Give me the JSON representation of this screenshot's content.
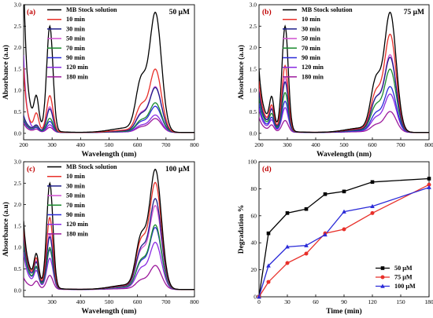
{
  "chart_data": [
    {
      "panel": "(a)",
      "type": "line",
      "concentration": "50 μM",
      "xlabel": "Wavelength (nm)",
      "ylabel": "Absorbance (a.u)",
      "xlim": [
        200,
        800
      ],
      "ylim": [
        -0.15,
        3.0
      ],
      "xticks": [
        200,
        300,
        400,
        500,
        600,
        700,
        800
      ],
      "yticks": [
        0.0,
        0.5,
        1.0,
        1.5,
        2.0,
        2.5,
        3.0
      ],
      "legend_position": "top-left",
      "series": [
        {
          "name": "MB Stock solution",
          "color": "#000000",
          "uv": 3.0,
          "v0": 0.55,
          "p292": 2.5,
          "p245": 0.85,
          "s610": 2.05,
          "p663": 2.75
        },
        {
          "name": "10 min",
          "color": "#e8302a",
          "uv": 1.25,
          "v0": 0.2,
          "p292": 0.88,
          "p245": 0.45,
          "s610": 1.05,
          "p663": 1.45
        },
        {
          "name": "30 min",
          "color": "#1f1f8a",
          "uv": 0.2,
          "v0": 0.15,
          "p292": 0.57,
          "p245": 0.18,
          "s610": 0.72,
          "p663": 1.03
        },
        {
          "name": "50 min",
          "color": "#d050d0",
          "uv": 0.2,
          "v0": 0.14,
          "p292": 0.62,
          "p245": 0.17,
          "s610": 0.75,
          "p663": 1.05
        },
        {
          "name": "70 min",
          "color": "#1a8a2e",
          "uv": 0.18,
          "v0": 0.12,
          "p292": 0.35,
          "p245": 0.15,
          "s610": 0.48,
          "p663": 0.68
        },
        {
          "name": "90 min",
          "color": "#2b2bd8",
          "uv": 0.16,
          "v0": 0.1,
          "p292": 0.28,
          "p245": 0.12,
          "s610": 0.42,
          "p663": 0.6
        },
        {
          "name": "120 min",
          "color": "#8a2be2",
          "uv": 1.7,
          "v0": 0.08,
          "p292": 0.2,
          "p245": 0.1,
          "s610": 0.28,
          "p663": 0.4
        },
        {
          "name": "180 min",
          "color": "#9c1a9c",
          "uv": 0.15,
          "v0": 0.06,
          "p292": 0.14,
          "p245": 0.08,
          "s610": 0.22,
          "p663": 0.32
        }
      ]
    },
    {
      "panel": "(b)",
      "type": "line",
      "concentration": "75 μM",
      "xlabel": "Wavelength (nm)",
      "ylabel": "Absorbance (a.u)",
      "xlim": [
        200,
        800
      ],
      "ylim": [
        -0.15,
        3.0
      ],
      "xticks": [
        200,
        300,
        400,
        500,
        600,
        700,
        800
      ],
      "yticks": [
        0.0,
        0.5,
        1.0,
        1.5,
        2.0,
        2.5,
        3.0
      ],
      "legend_position": "top-left",
      "series": [
        {
          "name": "MB Stock solution",
          "color": "#000000",
          "uv": 0.75,
          "v0": 0.55,
          "p292": 2.5,
          "p245": 0.85,
          "s610": 2.05,
          "p663": 2.75
        },
        {
          "name": "10 min",
          "color": "#e8302a",
          "uv": 0.6,
          "v0": 0.45,
          "p292": 1.58,
          "p245": 0.65,
          "s610": 1.6,
          "p663": 2.25
        },
        {
          "name": "30 min",
          "color": "#1f1f8a",
          "uv": 0.45,
          "v0": 0.38,
          "p292": 1.2,
          "p245": 0.55,
          "s610": 1.28,
          "p663": 1.72
        },
        {
          "name": "50 min",
          "color": "#d050d0",
          "uv": 0.5,
          "v0": 0.4,
          "p292": 1.3,
          "p245": 0.58,
          "s610": 1.3,
          "p663": 1.78
        },
        {
          "name": "70 min",
          "color": "#1a8a2e",
          "uv": 0.42,
          "v0": 0.32,
          "p292": 0.95,
          "p245": 0.45,
          "s610": 1.05,
          "p663": 1.45
        },
        {
          "name": "90 min",
          "color": "#2b2bd8",
          "uv": 0.35,
          "v0": 0.25,
          "p292": 0.75,
          "p245": 0.36,
          "s610": 0.75,
          "p663": 1.05
        },
        {
          "name": "120 min",
          "color": "#8a2be2",
          "uv": 0.3,
          "v0": 0.2,
          "p292": 0.6,
          "p245": 0.3,
          "s610": 0.6,
          "p663": 0.88
        },
        {
          "name": "180 min",
          "color": "#9c1a9c",
          "uv": 0.2,
          "v0": 0.12,
          "p292": 0.3,
          "p245": 0.18,
          "s610": 0.32,
          "p663": 0.48
        }
      ]
    },
    {
      "panel": "(c)",
      "type": "line",
      "concentration": "100 μM",
      "xlabel": "Wavelength (nm)",
      "ylabel": "Absorbance (a.u)",
      "xlim": [
        200,
        800
      ],
      "ylim": [
        -0.15,
        3.0
      ],
      "xticks": [
        300,
        400,
        500,
        600,
        700,
        800
      ],
      "yticks": [
        0.0,
        0.5,
        1.0,
        1.5,
        2.0,
        2.5,
        3.0
      ],
      "legend_position": "top-left",
      "series": [
        {
          "name": "MB Stock solution",
          "color": "#000000",
          "uv": 0.8,
          "v0": 0.6,
          "p292": 2.5,
          "p245": 0.85,
          "s610": 2.05,
          "p663": 2.75
        },
        {
          "name": "10 min",
          "color": "#e8302a",
          "uv": 0.7,
          "v0": 0.55,
          "p292": 1.7,
          "p245": 0.75,
          "s610": 1.85,
          "p663": 2.45
        },
        {
          "name": "30 min",
          "color": "#1f1f8a",
          "uv": 0.6,
          "v0": 0.5,
          "p292": 1.25,
          "p245": 0.65,
          "s610": 1.55,
          "p663": 2.08
        },
        {
          "name": "50 min",
          "color": "#d050d0",
          "uv": 0.62,
          "v0": 0.5,
          "p292": 1.32,
          "p245": 0.68,
          "s610": 1.45,
          "p663": 1.92
        },
        {
          "name": "70 min",
          "color": "#1a8a2e",
          "uv": 0.55,
          "v0": 0.42,
          "p292": 1.0,
          "p245": 0.55,
          "s610": 1.1,
          "p663": 1.48
        },
        {
          "name": "90 min",
          "color": "#2b2bd8",
          "uv": 0.52,
          "v0": 0.4,
          "p292": 0.95,
          "p245": 0.52,
          "s610": 1.05,
          "p663": 1.42
        },
        {
          "name": "120 min",
          "color": "#8a2be2",
          "uv": 0.45,
          "v0": 0.32,
          "p292": 0.75,
          "p245": 0.45,
          "s610": 0.8,
          "p663": 1.08
        },
        {
          "name": "180 min",
          "color": "#9c1a9c",
          "uv": 0.12,
          "v0": 0.12,
          "p292": 0.35,
          "p245": 0.2,
          "s610": 0.38,
          "p663": 0.55
        }
      ]
    },
    {
      "panel": "(d)",
      "type": "line",
      "xlabel": "Time (min)",
      "ylabel": "Degradation %",
      "xlim": [
        0,
        180
      ],
      "ylim": [
        0,
        100
      ],
      "xticks": [
        0,
        30,
        60,
        90,
        120,
        150,
        180
      ],
      "yticks": [
        0,
        20,
        40,
        60,
        80,
        100
      ],
      "legend_position": "bottom-right",
      "x": [
        0,
        10,
        30,
        50,
        70,
        90,
        120,
        180
      ],
      "series": [
        {
          "name": "50 μM",
          "color": "#000000",
          "marker": "square",
          "values": [
            0,
            47,
            62,
            65,
            76,
            78,
            85,
            87.5
          ]
        },
        {
          "name": "75 μM",
          "color": "#e8302a",
          "marker": "circle",
          "values": [
            0,
            11,
            25,
            32,
            47,
            50,
            62,
            83
          ]
        },
        {
          "name": "100 μM",
          "color": "#2b2bd8",
          "marker": "triangle",
          "values": [
            0,
            23,
            37,
            38,
            46,
            63,
            67,
            81
          ]
        }
      ]
    }
  ]
}
